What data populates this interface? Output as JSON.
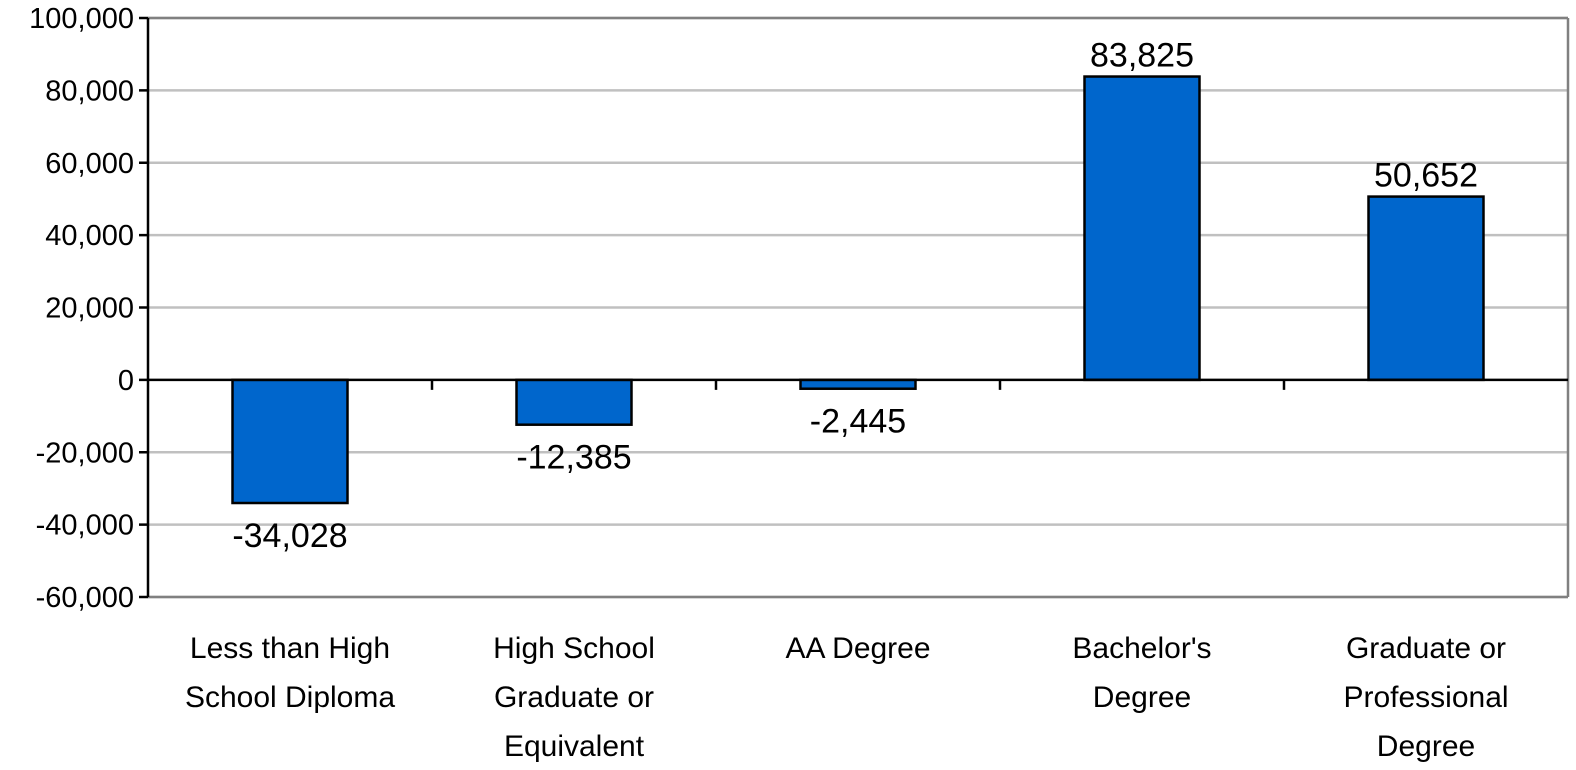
{
  "chart_data": {
    "type": "bar",
    "title": "",
    "xlabel": "",
    "ylabel": "",
    "categories": [
      "Less than High School Diploma",
      "High School Graduate or Equivalent",
      "AA Degree",
      "Bachelor's Degree",
      "Graduate or Professional Degree"
    ],
    "category_label_lines": [
      [
        "Less than High",
        "School Diploma"
      ],
      [
        "High School",
        "Graduate or",
        "Equivalent"
      ],
      [
        "AA Degree"
      ],
      [
        "Bachelor's",
        "Degree"
      ],
      [
        "Graduate or",
        "Professional",
        "Degree"
      ]
    ],
    "values": [
      -34028,
      -12385,
      -2445,
      83825,
      50652
    ],
    "data_labels": [
      "-34,028",
      "-12,385",
      "-2,445",
      "83,825",
      "50,652"
    ],
    "ylim": [
      -60000,
      100000
    ],
    "yticks": [
      100000,
      80000,
      60000,
      40000,
      20000,
      0,
      -20000,
      -40000,
      -60000
    ],
    "ytick_labels": [
      "100,000",
      "80,000",
      "60,000",
      "40,000",
      "20,000",
      "0",
      "-20,000",
      "-40,000",
      "-60,000"
    ],
    "grid": true,
    "legend": "none",
    "colors": {
      "bar_fill": "#0066CC",
      "bar_stroke": "#000000",
      "grid": "#C0C0C0",
      "axis": "#000000",
      "frame": "#808080"
    }
  }
}
